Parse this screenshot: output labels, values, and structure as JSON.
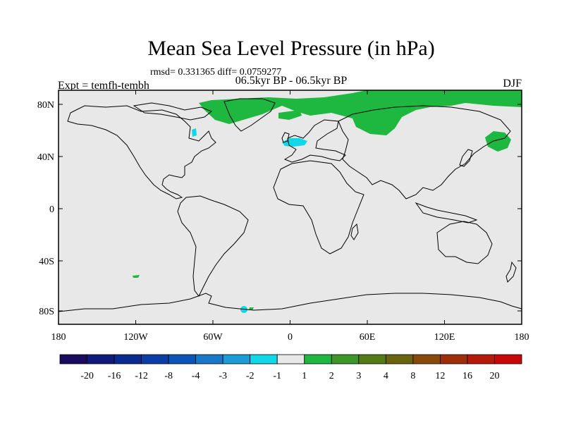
{
  "title": "Mean Sea Level Pressure (in hPa)",
  "stats": "rmsd= 0.331365  diff= 0.0759277",
  "subtitle": "06.5kyr BP - 06.5kyr BP",
  "experiment": "Expt = temfh-tembh",
  "season": "DJF",
  "lat_ticks": [
    "80N",
    "40N",
    "0",
    "40S",
    "80S"
  ],
  "lon_ticks": [
    "180",
    "120W",
    "60W",
    "0",
    "60E",
    "120E",
    "180"
  ],
  "colorbar": {
    "labels": [
      "-20",
      "-16",
      "-12",
      "-8",
      "-4",
      "-3",
      "-2",
      "-1",
      "1",
      "2",
      "3",
      "4",
      "8",
      "12",
      "16",
      "20"
    ],
    "colors": [
      "#1a0a5e",
      "#101a78",
      "#0a2a8e",
      "#0a3ea6",
      "#0a56b8",
      "#1a78c8",
      "#1a9cd8",
      "#10d8e8",
      "#e8e8e8",
      "#1eb840",
      "#3c9628",
      "#547c14",
      "#6a6410",
      "#884a0a",
      "#9e2e0a",
      "#b41a0a",
      "#c80808"
    ]
  },
  "colors": {
    "land_background": "#e8e8e8",
    "positive_anomaly": "#1eb840",
    "negative_anomaly": "#10d8e8"
  }
}
